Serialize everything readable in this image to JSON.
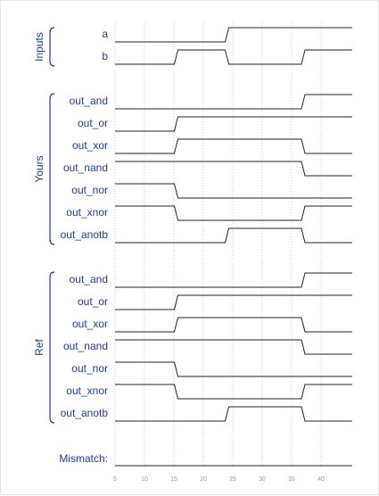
{
  "groups": [
    {
      "label": "Inputs",
      "signals": [
        {
          "name": "a",
          "wave": "0000000000000111111111111111"
        },
        {
          "name": "b",
          "wave": "0000000111111000000000111111"
        }
      ]
    },
    {
      "label": "Yours",
      "signals": [
        {
          "name": "out_and",
          "wave": "0000000000000000000000111111"
        },
        {
          "name": "out_or",
          "wave": "0000000111111111111111111111"
        },
        {
          "name": "out_xor",
          "wave": "0000000111111111111111000000"
        },
        {
          "name": "out_nand",
          "wave": "1111111111111111111111000000"
        },
        {
          "name": "out_nor",
          "wave": "1111111000000000000000000000"
        },
        {
          "name": "out_xnor",
          "wave": "1111111000000000000000111111"
        },
        {
          "name": "out_anotb",
          "wave": "0000000000000111111111000000"
        }
      ]
    },
    {
      "label": "Ref",
      "signals": [
        {
          "name": "out_and",
          "wave": "0000000000000000000000111111"
        },
        {
          "name": "out_or",
          "wave": "0000000111111111111111111111"
        },
        {
          "name": "out_xor",
          "wave": "0000000111111111111111000000"
        },
        {
          "name": "out_nand",
          "wave": "1111111111111111111111000000"
        },
        {
          "name": "out_nor",
          "wave": "1111111000000000000000000000"
        },
        {
          "name": "out_xnor",
          "wave": "1111111000000000000000111111"
        },
        {
          "name": "out_anotb",
          "wave": "0000000000000111111111000000"
        }
      ]
    }
  ],
  "mismatch": {
    "name": "Mismatch:",
    "wave": "0000000000000000000000000000"
  },
  "time_axis": {
    "start": 0,
    "step": 1.5,
    "ticks": [
      "5",
      "10",
      "15",
      "20",
      "25",
      "30",
      "35",
      "40"
    ]
  },
  "colors": {
    "label": "#1a3d99",
    "trace": "#222222",
    "grid": "#cccccc",
    "tick": "#999999"
  }
}
